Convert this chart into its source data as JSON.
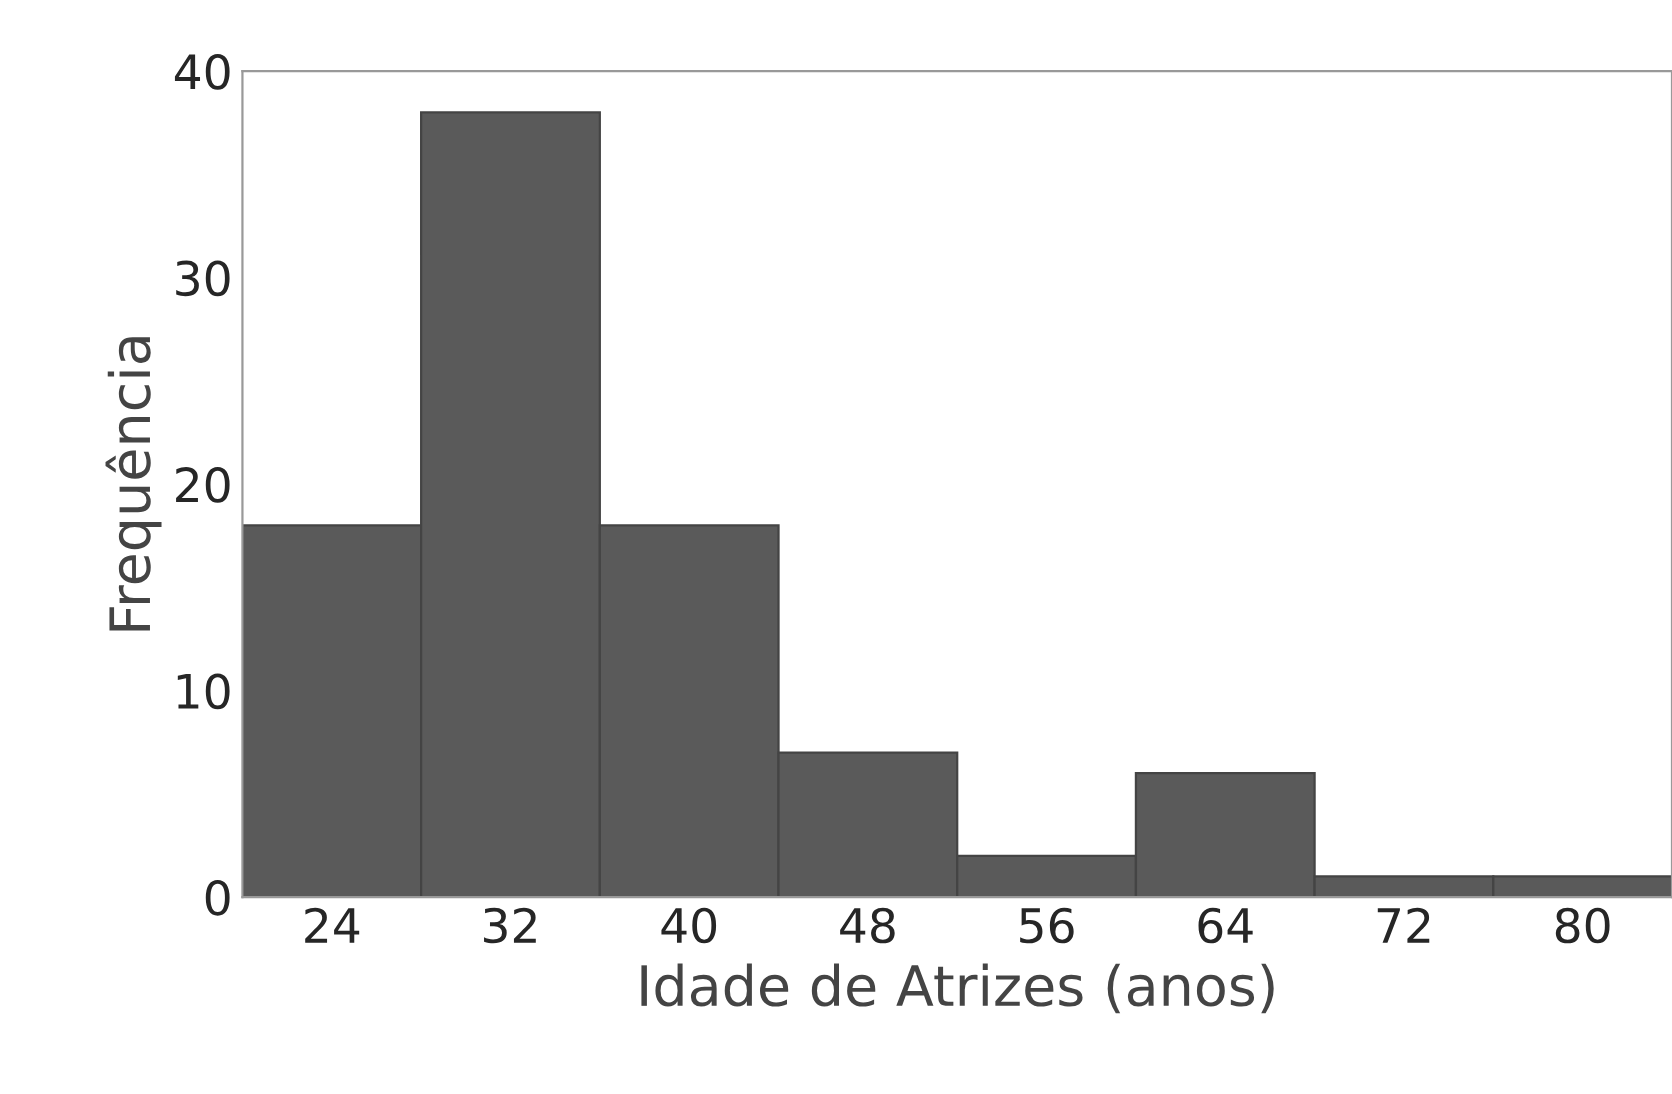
{
  "chart_data": {
    "type": "histogram",
    "xlabel": "Idade de Atrizes (anos)",
    "ylabel": "Frequência",
    "bins": [
      20,
      28,
      36,
      44,
      52,
      60,
      68,
      76,
      84
    ],
    "values": [
      18,
      38,
      18,
      7,
      2,
      6,
      1,
      1
    ],
    "color": "#5a5a5a",
    "xlim": [
      20,
      84
    ],
    "xticks": [
      24,
      32,
      40,
      48,
      56,
      64,
      72,
      80
    ],
    "ylim": [
      0,
      40
    ],
    "yticks": [
      0,
      10,
      20,
      30,
      40
    ],
    "grid": false,
    "legend": false
  }
}
